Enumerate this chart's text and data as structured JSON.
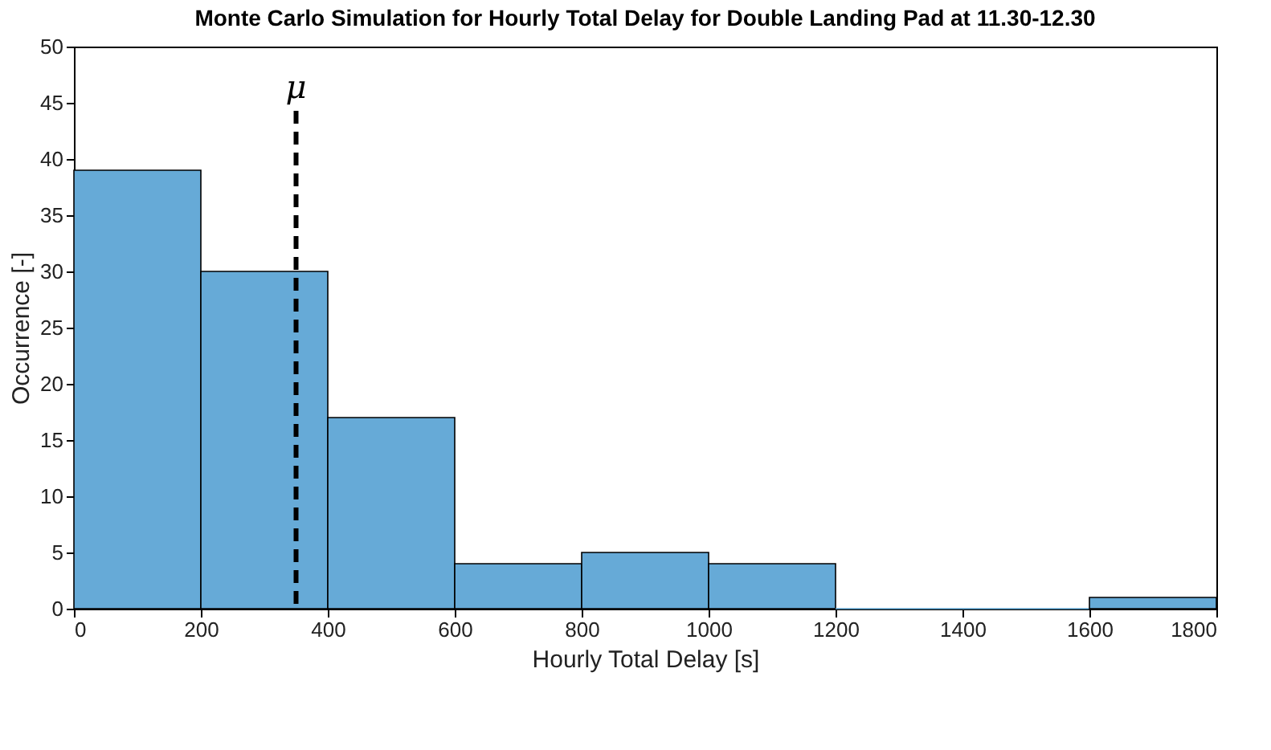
{
  "chart_data": {
    "type": "histogram",
    "title": "Monte Carlo Simulation for Hourly Total Delay for Double Landing Pad at 11.30-12.30",
    "xlabel": "Hourly Total Delay [s]",
    "ylabel": "Occurrence [-]",
    "bins": [
      0,
      200,
      400,
      600,
      800,
      1000,
      1200,
      1400,
      1600,
      1800
    ],
    "values": [
      39,
      30,
      17,
      4,
      5,
      4,
      0,
      0,
      1
    ],
    "color": "#66aad7",
    "xlim": [
      0,
      1800
    ],
    "xticks": [
      0,
      200,
      400,
      600,
      800,
      1000,
      1200,
      1400,
      1600,
      1800
    ],
    "ylim": [
      0,
      50
    ],
    "yticks": [
      0,
      5,
      10,
      15,
      20,
      25,
      30,
      35,
      40,
      45,
      50
    ],
    "ref_lines": [
      {
        "axis": "x",
        "value": 350,
        "label": "μ",
        "color": "#000000",
        "line_style": "dashed"
      }
    ],
    "grid": false
  }
}
